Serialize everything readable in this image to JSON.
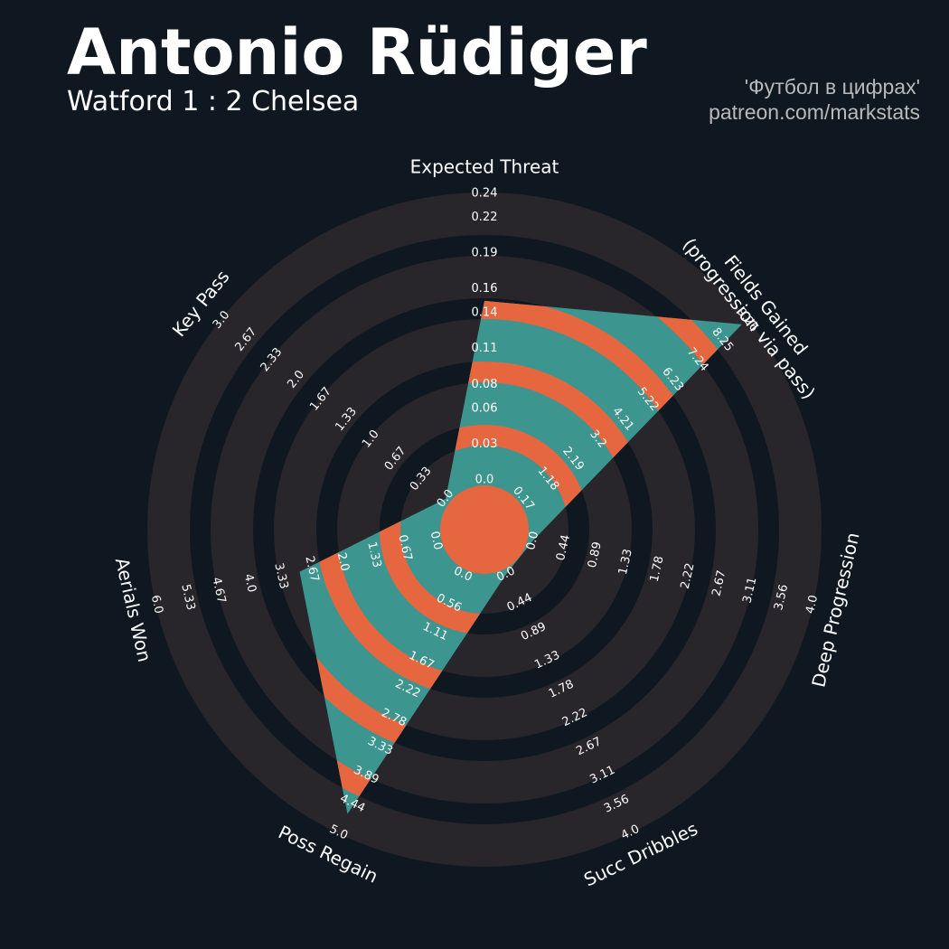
{
  "chart_data": {
    "type": "radar",
    "title": "Antonio Rüdiger",
    "subtitle": "Watford 1 : 2 Chelsea",
    "credits": [
      "'Футбол в цифрах'",
      "patreon.com/markstats"
    ],
    "axes": [
      {
        "label": [
          "Expected Threat"
        ],
        "rlim": [
          0,
          0.24
        ],
        "rticks": [
          {
            "value": 0,
            "label": "0.0"
          },
          0.03,
          0.06,
          0.08,
          0.11,
          0.14,
          0.16,
          0.19,
          0.22,
          0.24
        ]
      },
      {
        "label": [
          "Fields Gained",
          "(progression via pass)"
        ],
        "rlim": [
          0.17,
          9.26
        ],
        "rticks": [
          0.17,
          1.18,
          2.19,
          3.2,
          4.21,
          5.22,
          6.23,
          7.24,
          8.25,
          9.26
        ]
      },
      {
        "label": [
          "Deep Progression"
        ],
        "rlim": [
          0,
          4
        ],
        "rticks": [
          {
            "value": 0,
            "label": "0.0"
          },
          0.44,
          0.89,
          1.33,
          1.78,
          2.22,
          2.67,
          3.11,
          3.56,
          {
            "value": 4,
            "label": "4.0"
          }
        ]
      },
      {
        "label": [
          "Succ Dribbles"
        ],
        "rlim": [
          0,
          4
        ],
        "rticks": [
          {
            "value": 0,
            "label": "0.0"
          },
          0.44,
          0.89,
          1.33,
          1.78,
          2.22,
          2.67,
          3.11,
          3.56,
          {
            "value": 4,
            "label": "4.0"
          }
        ]
      },
      {
        "label": [
          "Poss Regain"
        ],
        "rlim": [
          0,
          5
        ],
        "rticks": [
          {
            "value": 0,
            "label": "0.0"
          },
          0.56,
          1.11,
          1.67,
          2.22,
          2.78,
          3.33,
          3.89,
          4.44,
          {
            "value": 5,
            "label": "5.0"
          }
        ]
      },
      {
        "label": [
          "Aerials Won"
        ],
        "rlim": [
          0,
          6
        ],
        "rticks": [
          {
            "value": 0,
            "label": "0.0"
          },
          0.67,
          1.33,
          {
            "value": 2,
            "label": "2.0"
          },
          2.67,
          3.33,
          {
            "value": 4,
            "label": "4.0"
          },
          4.67,
          5.33,
          {
            "value": 6,
            "label": "6.0"
          }
        ]
      },
      {
        "label": [
          "Key Pass"
        ],
        "rlim": [
          0,
          3
        ],
        "rticks": [
          {
            "value": 0,
            "label": "0.0"
          },
          0.33,
          0.67,
          {
            "value": 1,
            "label": "1.0"
          },
          1.33,
          1.67,
          {
            "value": 2,
            "label": "2.0"
          },
          2.33,
          2.67,
          {
            "value": 3,
            "label": "3.0"
          }
        ]
      }
    ],
    "series": [
      {
        "values": [
          0.15,
          9.04,
          0,
          0,
          4.64,
          2.93,
          0
        ],
        "colors": [
          "#3c968f",
          "#e6663f"
        ]
      }
    ],
    "ring_colors": [
      "#28252b",
      "#0f1820"
    ]
  }
}
